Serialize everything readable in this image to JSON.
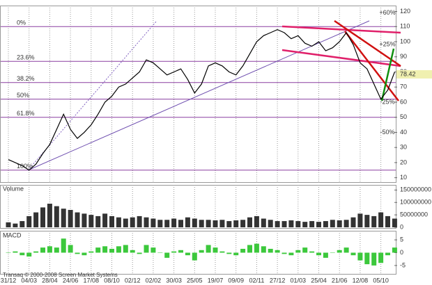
{
  "chart_data": [
    {
      "type": "line",
      "color": "#000000",
      "categories": [
        "31/12",
        null,
        null,
        "04/03",
        null,
        null,
        "28/04",
        null,
        null,
        "24/06",
        null,
        null,
        "17/08",
        null,
        null,
        "08/10",
        null,
        null,
        "02/12",
        null,
        null,
        "02/02",
        null,
        null,
        "30/03",
        null,
        null,
        "25/05",
        null,
        null,
        "19/07",
        null,
        null,
        "09/09",
        null,
        null,
        "02/11",
        null,
        null,
        "27/12",
        null,
        null,
        "01/03",
        null,
        null,
        "25/04",
        null,
        null,
        "21/06",
        null,
        null,
        "12/08",
        null,
        null,
        "05/10",
        null,
        null
      ],
      "values": [
        22,
        20,
        18,
        15,
        19,
        26,
        32,
        42,
        52,
        42,
        36,
        40,
        45,
        52,
        60,
        64,
        70,
        72,
        76,
        80,
        88,
        86,
        82,
        78,
        80,
        82,
        75,
        66,
        72,
        84,
        86,
        84,
        80,
        78,
        84,
        92,
        100,
        104,
        106,
        108,
        106,
        102,
        104,
        99,
        97,
        100,
        94,
        96,
        100,
        106,
        98,
        86,
        82,
        72,
        62,
        68,
        80
      ],
      "ylim": [
        8,
        123
      ],
      "yticks": [
        10,
        20,
        30,
        40,
        50,
        60,
        70,
        80,
        90,
        100,
        110,
        120
      ],
      "last_price": 78.42,
      "fib_levels": [
        {
          "value": 110,
          "label": "0%"
        },
        {
          "value": 87,
          "label": "23.6%"
        },
        {
          "value": 73,
          "label": "38.2%"
        },
        {
          "value": 62,
          "label": "50%"
        },
        {
          "value": 50,
          "label": "61.8%"
        },
        {
          "value": 15,
          "label": "100%"
        }
      ],
      "fib_color": "#8a3fa0",
      "pct_levels": [
        {
          "value": 119,
          "label": "+60%",
          "color": "#2a9a2a"
        },
        {
          "value": 98,
          "label": "+25%",
          "color": "#2a9a2a"
        },
        {
          "value": 60,
          "label": "-25%",
          "color": "#a03040"
        },
        {
          "value": 40,
          "label": "-50%",
          "color": "#a03040"
        }
      ]
    },
    {
      "type": "bar",
      "label": "Volume",
      "color": "#333333",
      "values": [
        20000000,
        15000000,
        25000000,
        45000000,
        60000000,
        80000000,
        95000000,
        85000000,
        75000000,
        70000000,
        60000000,
        55000000,
        50000000,
        45000000,
        55000000,
        45000000,
        40000000,
        35000000,
        40000000,
        45000000,
        40000000,
        35000000,
        30000000,
        30000000,
        35000000,
        30000000,
        40000000,
        35000000,
        30000000,
        30000000,
        28000000,
        30000000,
        25000000,
        28000000,
        30000000,
        40000000,
        45000000,
        35000000,
        30000000,
        25000000,
        25000000,
        28000000,
        25000000,
        22000000,
        25000000,
        22000000,
        25000000,
        30000000,
        28000000,
        30000000,
        40000000,
        55000000,
        50000000,
        45000000,
        60000000,
        45000000,
        35000000
      ],
      "ylim": [
        0,
        165000000
      ],
      "yticks": [
        0,
        50000000,
        100000000,
        150000000
      ]
    },
    {
      "type": "bar",
      "label": "MACD",
      "color": "#3cc83c",
      "values": [
        0,
        0.5,
        -1,
        -1.5,
        0.5,
        2,
        2.5,
        2,
        5.5,
        3,
        -0.5,
        -1,
        0.5,
        2,
        2.5,
        1.5,
        2.5,
        3,
        1,
        -0.5,
        3,
        2,
        0,
        -2,
        0.5,
        1,
        -1,
        -3,
        1,
        3,
        2,
        0.5,
        -0.5,
        -1,
        1.5,
        3,
        3.5,
        2.5,
        1.5,
        1,
        -0.5,
        -1,
        1,
        2,
        0.5,
        -1,
        -2,
        0,
        1,
        2,
        -1,
        -3,
        -4.5,
        -5,
        -4,
        -1,
        2
      ],
      "ylim": [
        -8,
        8
      ],
      "yticks": [
        -5,
        0,
        5
      ]
    }
  ],
  "footer": "Transaq © 2000-2008 Screen Market Systems"
}
